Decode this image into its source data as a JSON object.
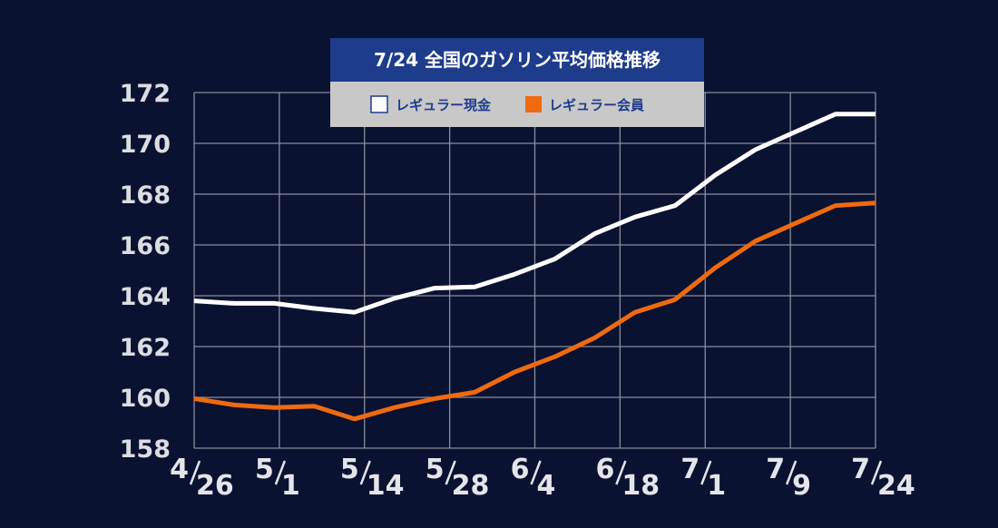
{
  "chart_data": {
    "type": "line",
    "title": "7/24 全国のガソリン平均価格推移",
    "xlabel": "",
    "ylabel": "",
    "ylim": [
      158,
      172
    ],
    "yticks": [
      158,
      160,
      162,
      164,
      166,
      168,
      170,
      172
    ],
    "x_tick_labels": [
      {
        "top": "4",
        "bottom": "26"
      },
      {
        "top": "5",
        "bottom": "1"
      },
      {
        "top": "5",
        "bottom": "14"
      },
      {
        "top": "5",
        "bottom": "28"
      },
      {
        "top": "6",
        "bottom": "4"
      },
      {
        "top": "6",
        "bottom": "18"
      },
      {
        "top": "7",
        "bottom": "1"
      },
      {
        "top": "7",
        "bottom": "9"
      },
      {
        "top": "7",
        "bottom": "24"
      }
    ],
    "grid": true,
    "legend_position": "top-center",
    "series": [
      {
        "name": "レギュラー現金",
        "color": "#ffffff",
        "values": [
          163.8,
          163.7,
          163.7,
          163.5,
          163.35,
          163.9,
          164.3,
          164.35,
          164.85,
          165.45,
          166.45,
          167.1,
          167.55,
          168.75,
          169.75,
          170.45,
          171.15,
          171.15
        ]
      },
      {
        "name": "レギュラー会員",
        "color": "#f06a10",
        "values": [
          159.95,
          159.7,
          159.6,
          159.65,
          159.15,
          159.6,
          159.95,
          160.2,
          161.0,
          161.6,
          162.35,
          163.35,
          163.85,
          165.1,
          166.15,
          166.85,
          167.55,
          167.65
        ]
      }
    ]
  },
  "colors": {
    "background": "#0a1232",
    "grid": "#8a8d9c",
    "title_bg": "#1e3c8c",
    "legend_bg": "#c8c8c8"
  }
}
